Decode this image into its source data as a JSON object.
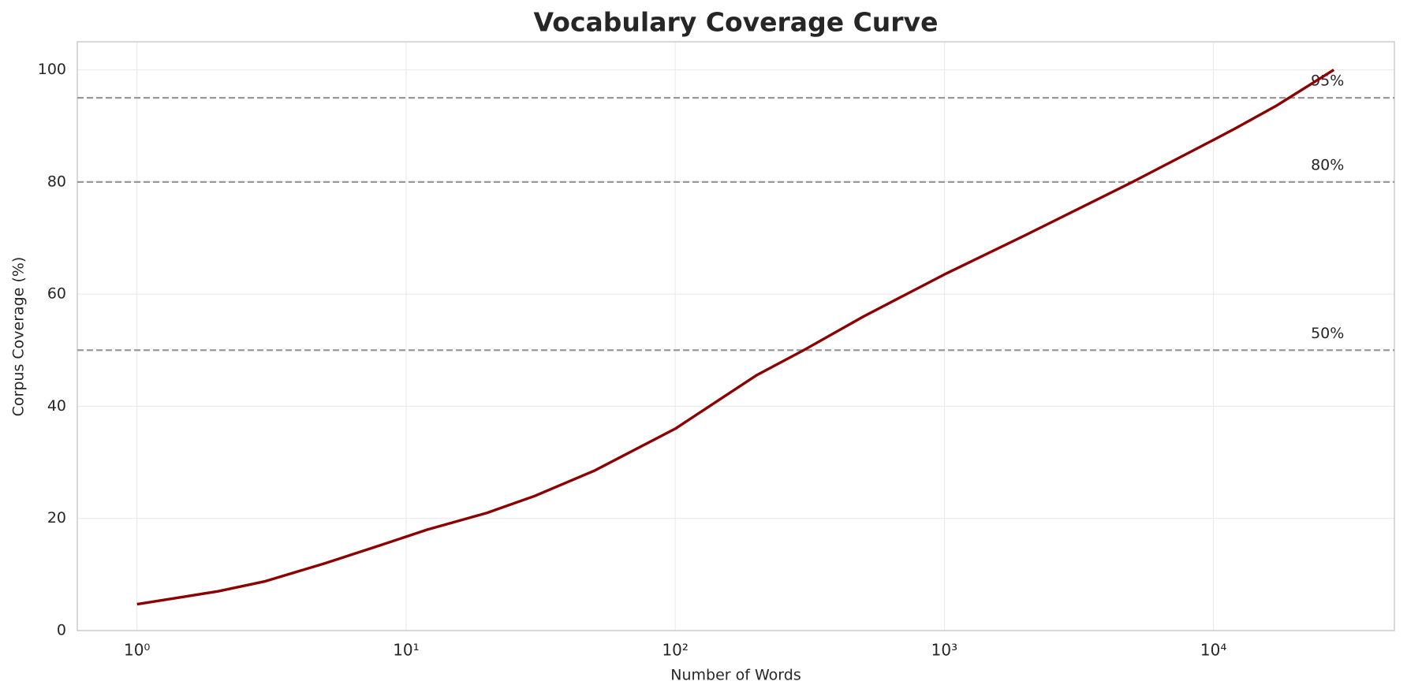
{
  "chart_data": {
    "type": "line",
    "title": "Vocabulary Coverage Curve",
    "x_label": "Number of Words",
    "y_label": "Corpus Coverage (%)",
    "x_scale": "log",
    "grid": true,
    "color": "#8b0000",
    "x": [
      1,
      2,
      3,
      5,
      8,
      12,
      20,
      30,
      50,
      100,
      200,
      300,
      500,
      1000,
      2000,
      5000,
      10000,
      12000,
      17000,
      28000
    ],
    "values": [
      4.7,
      7,
      8.8,
      12,
      15.2,
      18,
      21,
      24,
      28.5,
      36,
      45.5,
      50,
      56,
      63.5,
      70.5,
      80,
      87.5,
      89.5,
      93.5,
      100
    ],
    "xlim": [
      0.6,
      47000
    ],
    "ylim": [
      0,
      105
    ],
    "xticks": [
      {
        "value": 1,
        "label": "10⁰"
      },
      {
        "value": 10,
        "label": "10¹"
      },
      {
        "value": 100,
        "label": "10²"
      },
      {
        "value": 1000,
        "label": "10³"
      },
      {
        "value": 10000,
        "label": "10⁴"
      }
    ],
    "yticks": [
      0,
      20,
      40,
      60,
      80,
      100
    ],
    "reference_lines": [
      {
        "value": 50,
        "label": "50%"
      },
      {
        "value": 80,
        "label": "80%"
      },
      {
        "value": 95,
        "label": "95%"
      }
    ],
    "reference_label_x": 23000
  }
}
